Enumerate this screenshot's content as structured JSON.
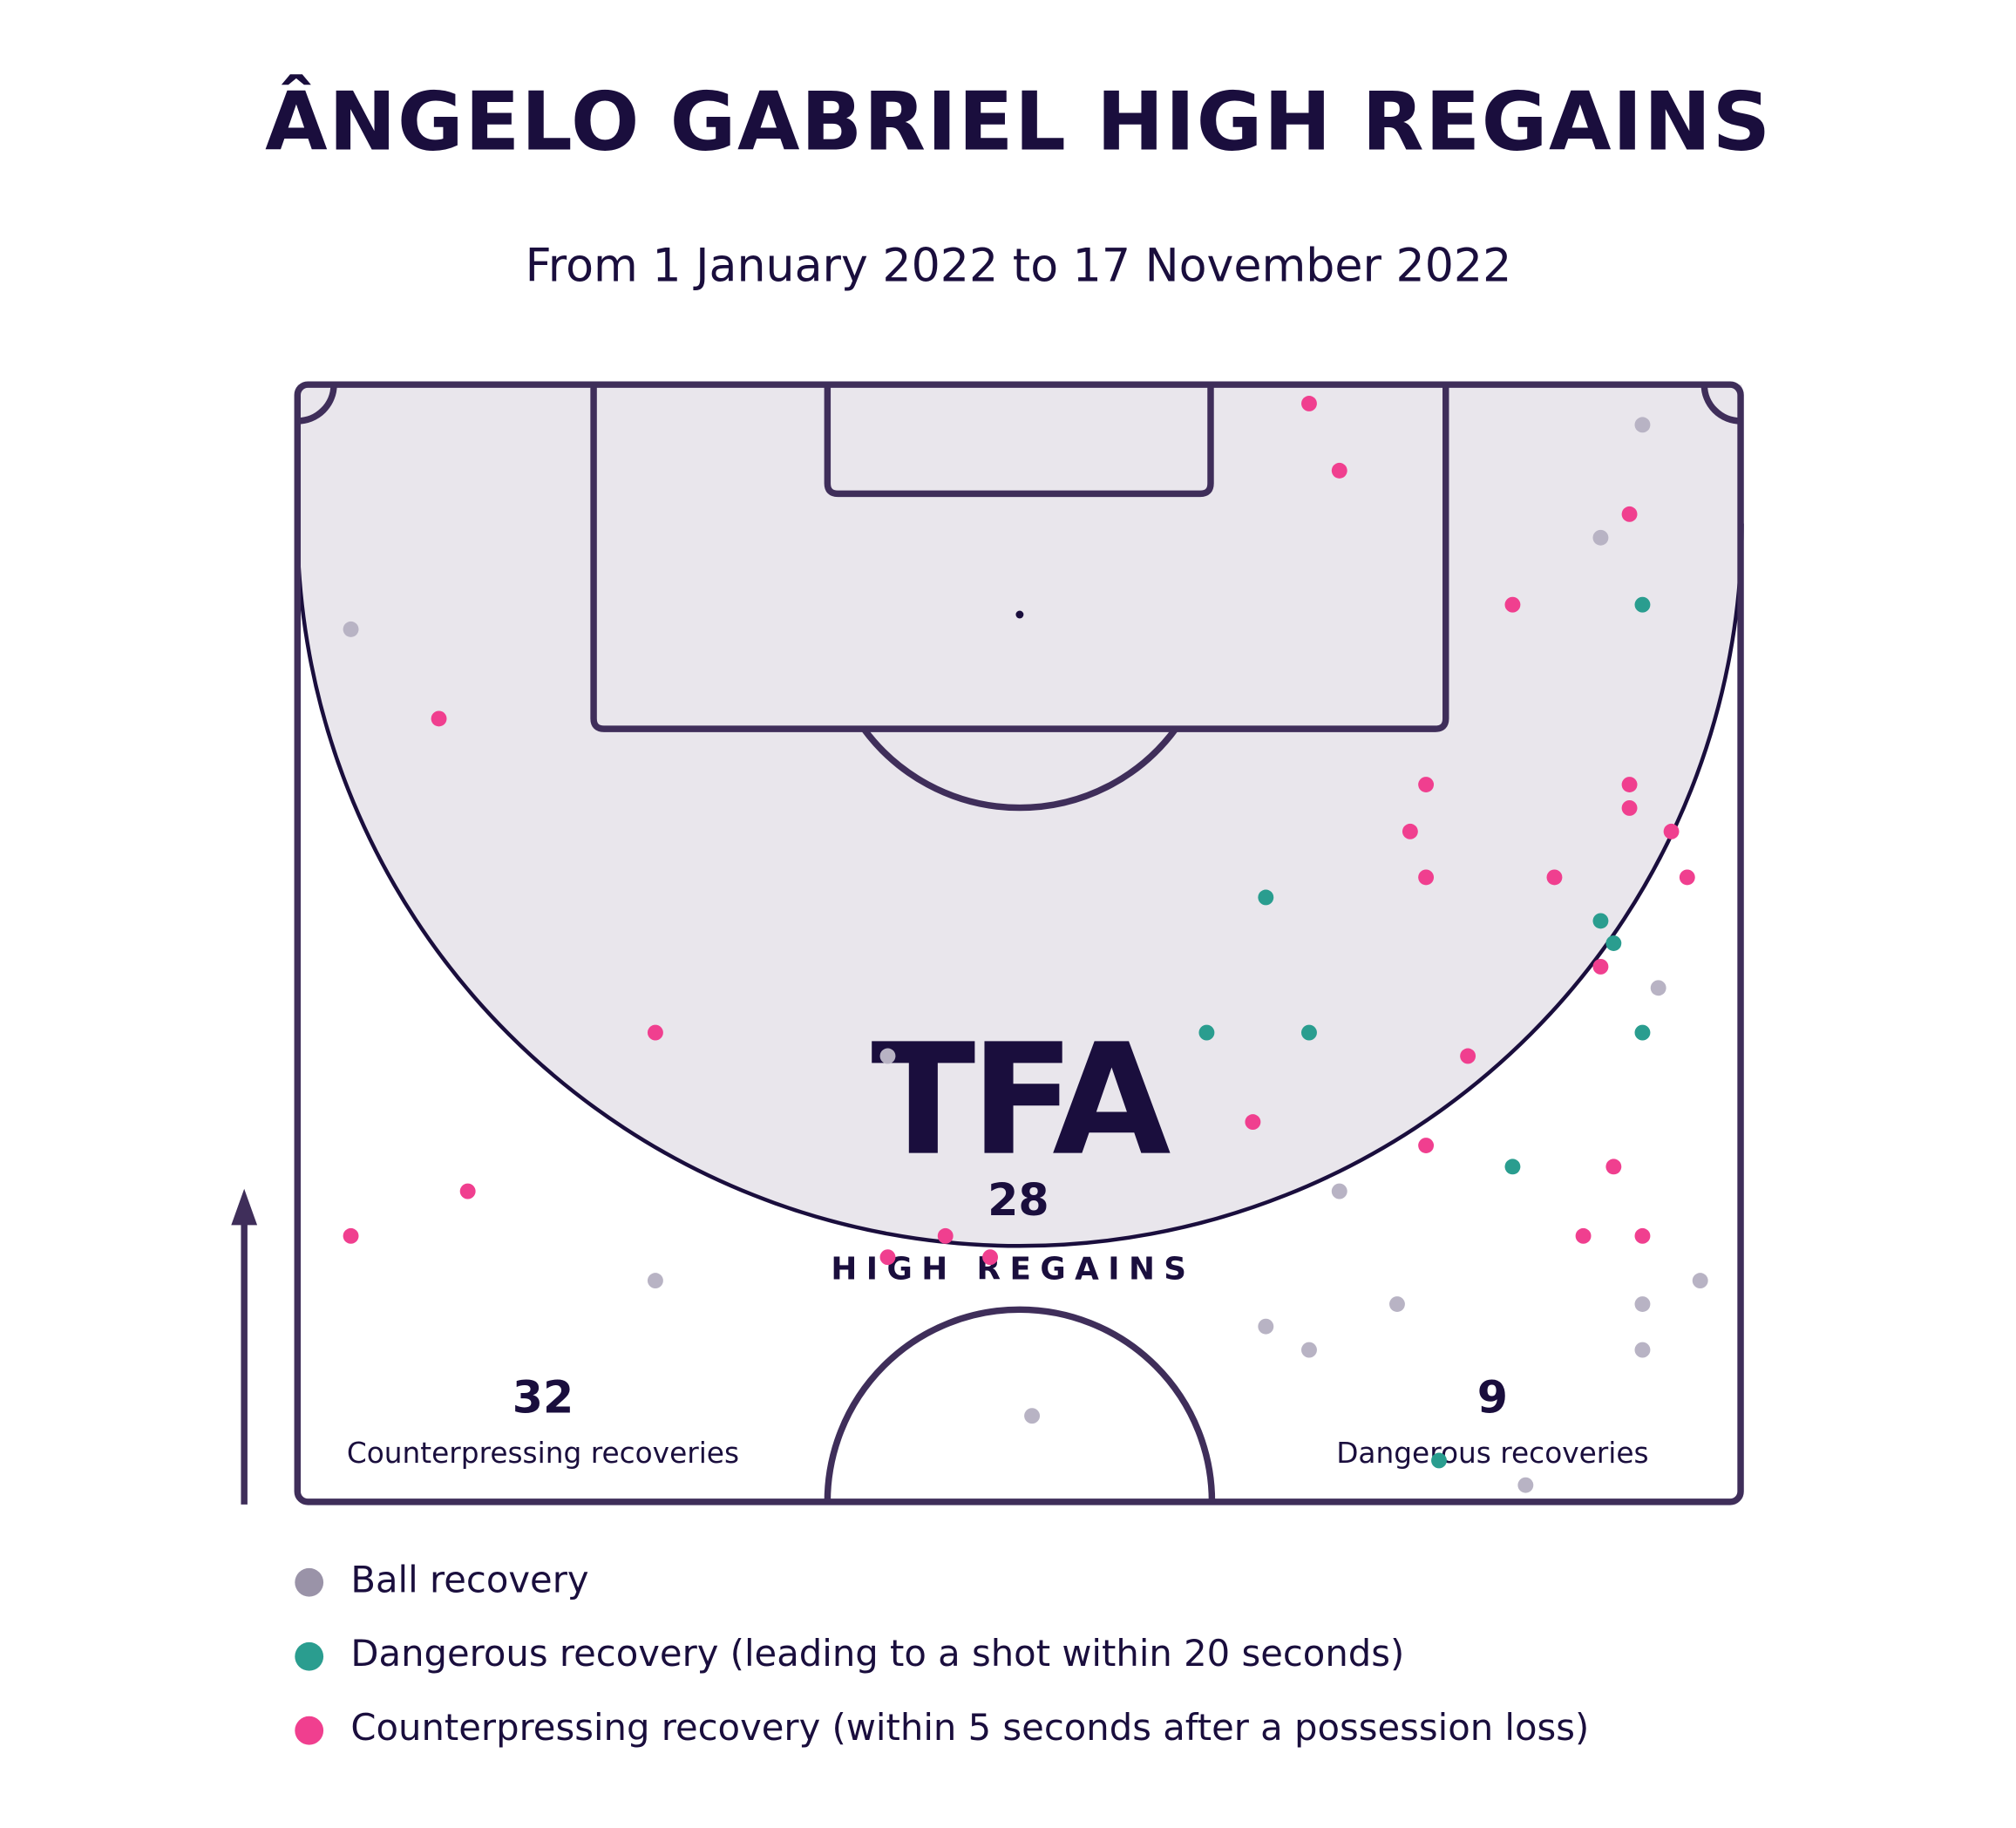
{
  "chart_data": {
    "type": "scatter",
    "title": "ÂNGELO GABRIEL HIGH REGAINS",
    "subtitle": "From 1 January 2022 to 17 November 2022",
    "brand": "TFA",
    "stats": [
      {
        "value": 28,
        "label": "HIGH REGAINS"
      },
      {
        "value": 32,
        "label": "Counterpressing recoveries"
      },
      {
        "value": 9,
        "label": "Dangerous recoveries"
      }
    ],
    "series": [
      {
        "name": "Ball recovery",
        "color": "#b8b3c4",
        "legend_color": "#9a93a8",
        "x": [
          93.2,
          90.3,
          3.7,
          40.9,
          72.2,
          24.8,
          76.2,
          93.2,
          97.2,
          67.1,
          70.1,
          93.2,
          50.9,
          85.1,
          94.3
        ],
        "y": [
          3.6,
          13.7,
          21.9,
          60.1,
          72.2,
          80.2,
          82.3,
          82.3,
          80.2,
          84.3,
          86.4,
          86.4,
          92.3,
          98.5,
          54.0
        ]
      },
      {
        "name": "Dangerous recovery (leading to a shot within 20 seconds)",
        "color": "#2a9d8f",
        "legend_color": "#2a9d8f",
        "x": [
          93.2,
          67.1,
          90.3,
          91.2,
          63.0,
          70.1,
          93.2,
          84.2,
          79.1
        ],
        "y": [
          19.7,
          45.9,
          48.0,
          50.0,
          58.0,
          58.0,
          58.0,
          70.0,
          96.3
        ]
      },
      {
        "name": "Counterpressing recovery (within 5 seconds after a possession loss)",
        "color": "#f03f8f",
        "legend_color": "#f03f8f",
        "x": [
          70.1,
          72.2,
          92.3,
          84.2,
          9.8,
          78.2,
          92.3,
          92.3,
          77.1,
          95.2,
          78.2,
          87.1,
          96.3,
          90.3,
          24.8,
          81.1,
          66.2,
          78.2,
          11.8,
          91.2,
          3.7,
          44.9,
          89.1,
          93.2,
          40.9,
          48.0
        ],
        "y": [
          1.7,
          7.7,
          11.6,
          19.7,
          29.9,
          35.8,
          35.8,
          37.9,
          40.0,
          40.0,
          44.1,
          44.1,
          44.1,
          52.1,
          58.0,
          60.1,
          66.0,
          68.1,
          72.2,
          70.0,
          76.2,
          76.2,
          76.2,
          76.2,
          78.1,
          78.1
        ]
      }
    ]
  }
}
